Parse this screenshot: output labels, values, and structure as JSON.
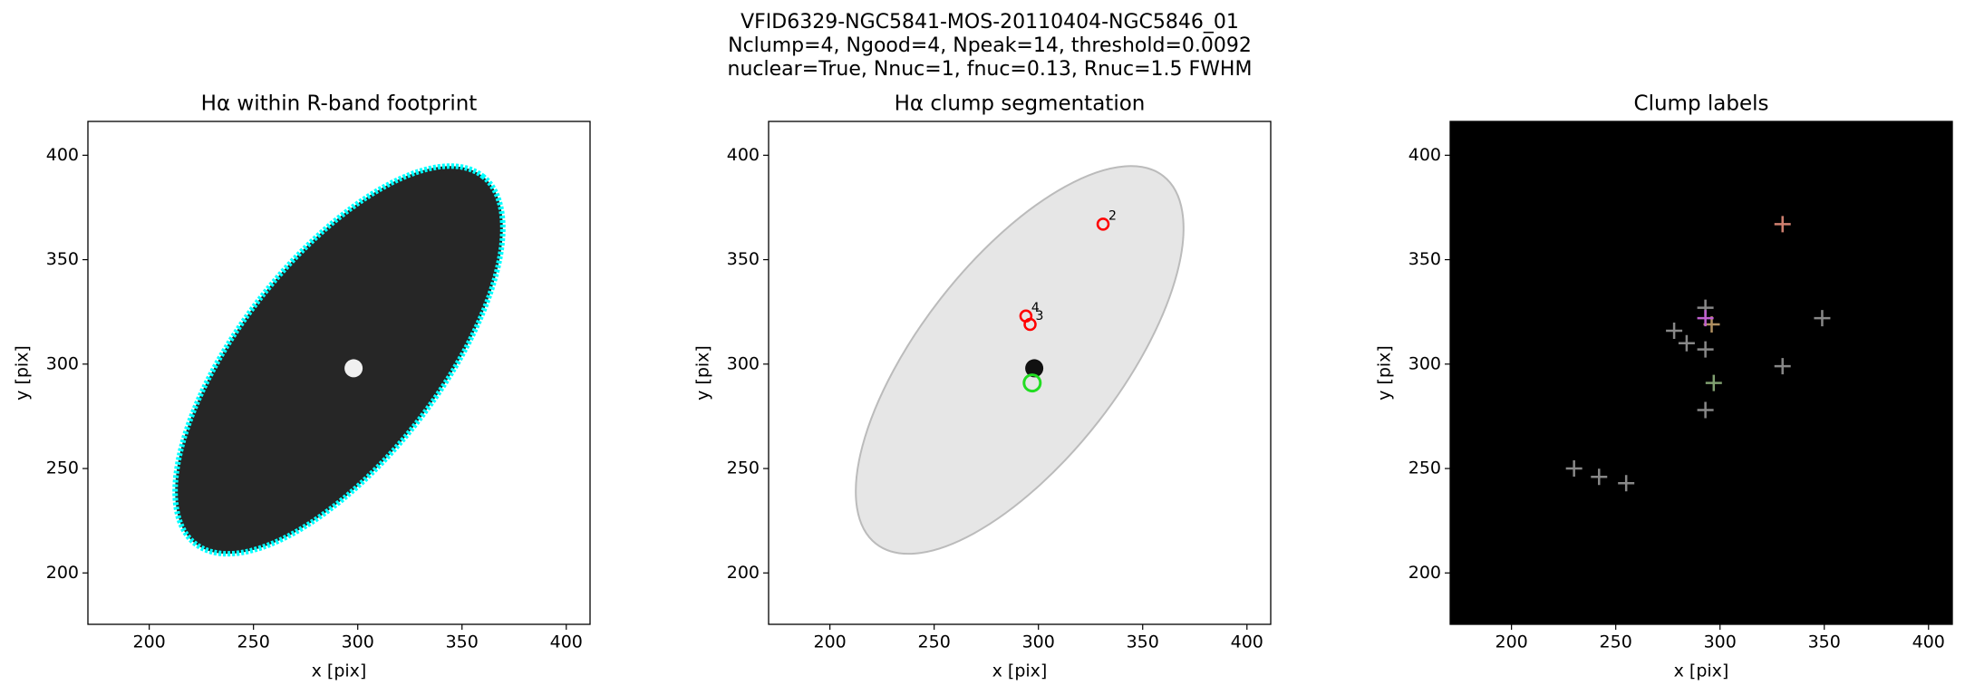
{
  "suptitle": [
    "VFID6329-NGC5841-MOS-20110404-NGC5846_01",
    "Nclump=4, Ngood=4, Npeak=14, threshold=0.0092",
    "nuclear=True, Nnuc=1, fnuc=0.13, Rnuc=1.5 FWHM"
  ],
  "chart_data": [
    {
      "type": "image",
      "title": "Hα within R-band footprint",
      "xlabel": "x [pix]",
      "ylabel": "y [pix]",
      "xlim": [
        170.6,
        411.4
      ],
      "ylim": [
        175.4,
        416.2
      ],
      "xticks": [
        200,
        250,
        300,
        350,
        400
      ],
      "yticks": [
        200,
        250,
        300,
        350,
        400
      ],
      "image": "gray",
      "contour_color": "#00ffff"
    },
    {
      "type": "image",
      "title": "Hα clump segmentation",
      "xlabel": "x [pix]",
      "ylabel": "y [pix]",
      "xlim": [
        170.6,
        411.4
      ],
      "ylim": [
        175.4,
        416.2
      ],
      "xticks": [
        200,
        250,
        300,
        350,
        400
      ],
      "yticks": [
        200,
        250,
        300,
        350,
        400
      ],
      "image": "gray_r",
      "contour_color": "#bbbbbb",
      "clumps": {
        "x": [
          331,
          294,
          296
        ],
        "y": [
          367,
          323,
          319
        ],
        "labels": [
          "2",
          "4",
          "3"
        ],
        "color": "#ff0000"
      },
      "nucleus": {
        "x": [
          297
        ],
        "y": [
          291
        ],
        "color": "#22dd22"
      }
    },
    {
      "type": "image",
      "title": "Clump labels",
      "xlabel": "x [pix]",
      "ylabel": "y [pix]",
      "xlim": [
        170.6,
        411.4
      ],
      "ylim": [
        175.4,
        416.2
      ],
      "xticks": [
        200,
        250,
        300,
        350,
        400
      ],
      "yticks": [
        200,
        250,
        300,
        350,
        400
      ],
      "image": "labels",
      "markers": {
        "x": [
          230,
          242,
          255,
          278,
          284,
          293,
          293,
          293,
          296,
          297,
          330,
          349,
          330,
          293
        ],
        "y": [
          250,
          246,
          243,
          316,
          310,
          327,
          307,
          278,
          319,
          291,
          299,
          322,
          367,
          322
        ],
        "colors": [
          "#888888",
          "#888888",
          "#888888",
          "#888888",
          "#888888",
          "#888888",
          "#888888",
          "#888888",
          "#b09060",
          "#80a070",
          "#888888",
          "#888888",
          "#d08070",
          "#c060d0"
        ]
      }
    }
  ]
}
